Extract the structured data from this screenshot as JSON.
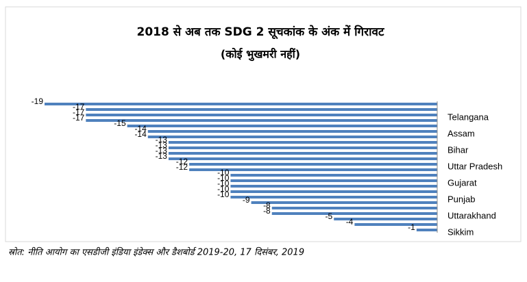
{
  "chart_data": {
    "type": "bar",
    "orientation": "horizontal",
    "title": "2018 से अब तक SDG 2 सूचकांक के अंक में गिरावट",
    "subtitle": "(कोई भुखमरी नहीं)",
    "source": "स्रोत: नीति आयोग का एसडीजी इंडिया इंडेक्स और डैशबोर्ड 2019-20, 17 दिसंबर, 2019",
    "categories": [
      null,
      null,
      "Telangana",
      null,
      null,
      "Assam",
      null,
      null,
      "Bihar",
      null,
      null,
      "Uttar Pradesh",
      null,
      null,
      "Gujarat",
      null,
      null,
      "Punjab",
      null,
      null,
      "Uttarakhand",
      null,
      null,
      "Sikkim"
    ],
    "values": [
      -19,
      -17,
      -17,
      -17,
      -15,
      -14,
      -14,
      -13,
      -13,
      -13,
      -13,
      -12,
      -12,
      -10,
      -10,
      -10,
      -10,
      -10,
      -9,
      -8,
      -8,
      -5,
      -4,
      -1
    ],
    "color": "#4f81bd",
    "xlim": [
      -19,
      0
    ]
  }
}
